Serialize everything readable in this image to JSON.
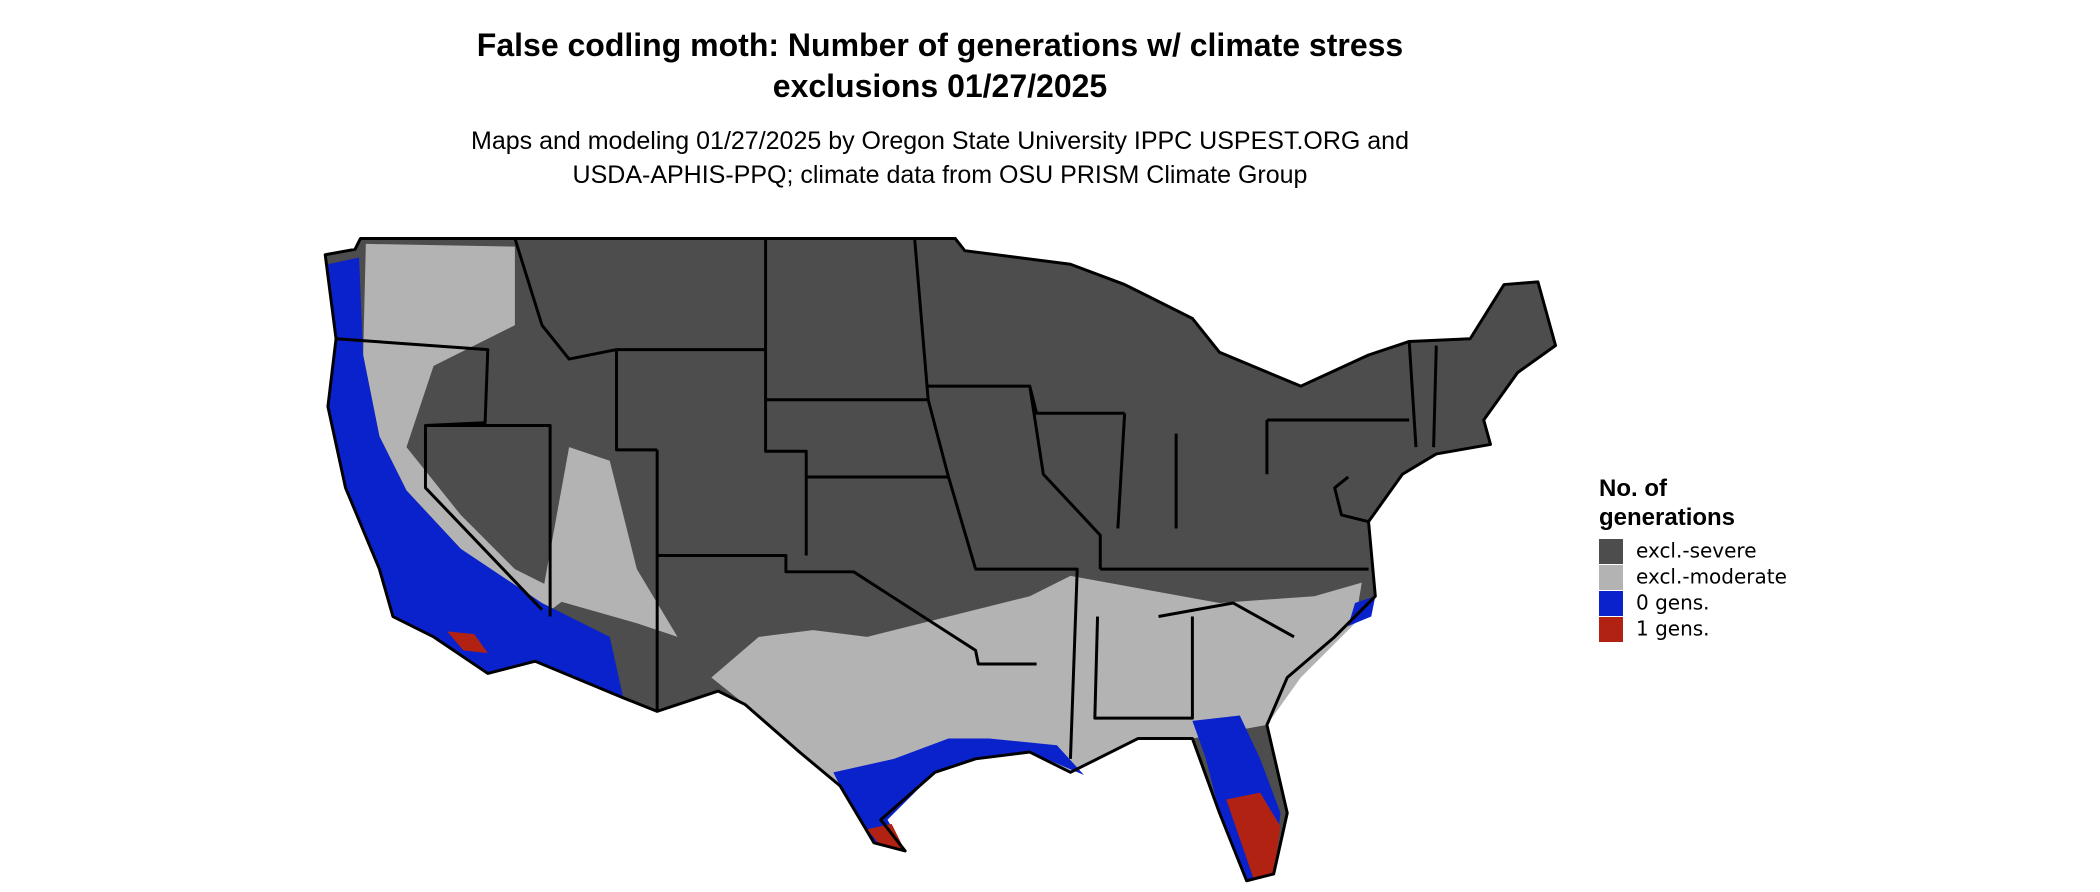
{
  "header": {
    "title_lines": [
      "False codling moth: Number of generations w/ climate stress",
      "exclusions 01/27/2025"
    ],
    "subtitle_lines": [
      "Maps and modeling 01/27/2025 by Oregon State University IPPC USPEST.ORG and",
      "USDA-APHIS-PPQ; climate data from OSU PRISM Climate Group"
    ]
  },
  "legend": {
    "title_lines": [
      "No. of",
      "generations"
    ],
    "items": [
      {
        "label": "excl.-severe",
        "color": "#4d4d4d"
      },
      {
        "label": "excl.-moderate",
        "color": "#b3b3b3"
      },
      {
        "label": "0 gens.",
        "color": "#0a22cc"
      },
      {
        "label": "1 gens.",
        "color": "#b22212"
      }
    ]
  }
}
